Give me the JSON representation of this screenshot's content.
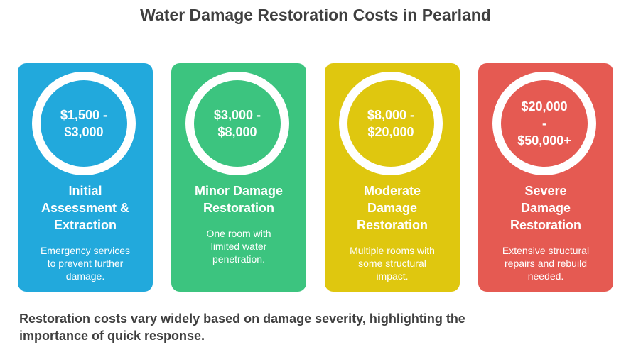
{
  "title": "Water Damage Restoration Costs in Pearland",
  "cards": [
    {
      "price": "$1,500 -\n$3,000",
      "name": "Initial\nAssessment &\nExtraction",
      "description": "Emergency services\nto prevent further\ndamage.",
      "color": "#22a9dc"
    },
    {
      "price": "$3,000 -\n$8,000",
      "name": "Minor Damage\nRestoration",
      "description": "One room with\nlimited water\npenetration.",
      "color": "#3cc47f"
    },
    {
      "price": "$8,000 -\n$20,000",
      "name": "Moderate\nDamage\nRestoration",
      "description": "Multiple rooms with\nsome structural\nimpact.",
      "color": "#dfc70f"
    },
    {
      "price": "$20,000\n-\n$50,000+",
      "name": "Severe\nDamage\nRestoration",
      "description": "Extensive structural\nrepairs and rebuild\nneeded.",
      "color": "#e55a52"
    }
  ],
  "footer": "Restoration costs vary widely based on damage severity, highlighting the\nimportance of quick response."
}
